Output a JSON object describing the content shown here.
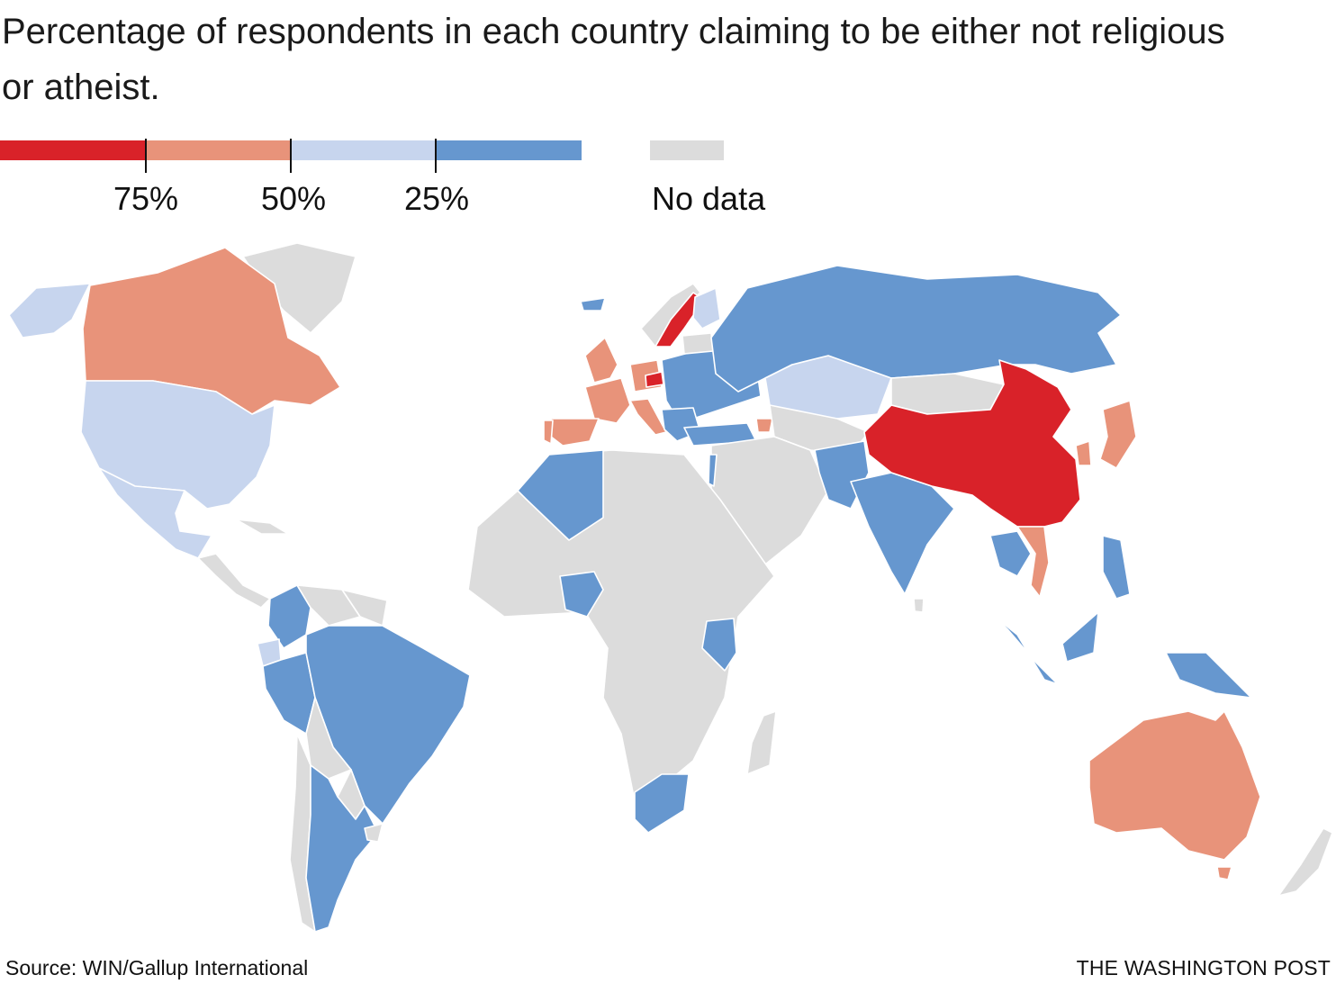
{
  "title": "Percentage of respondents in each country claiming to be either not religious or atheist.",
  "legend": {
    "colors": [
      "#d92229",
      "#e8937a",
      "#c7d5ee",
      "#6697cf"
    ],
    "ticks": [
      "75%",
      "50%",
      "25%"
    ],
    "no_data_label": "No data",
    "no_data_color": "#dcdcdc"
  },
  "map": {
    "category_colors": {
      "over_75": "#d92229",
      "50_75": "#e8937a",
      "25_50": "#c7d5ee",
      "under_25": "#6697cf",
      "no_data": "#dcdcdc"
    }
  },
  "footer": {
    "source": "Source: WIN/Gallup International",
    "credit": "THE WASHINGTON POST"
  }
}
